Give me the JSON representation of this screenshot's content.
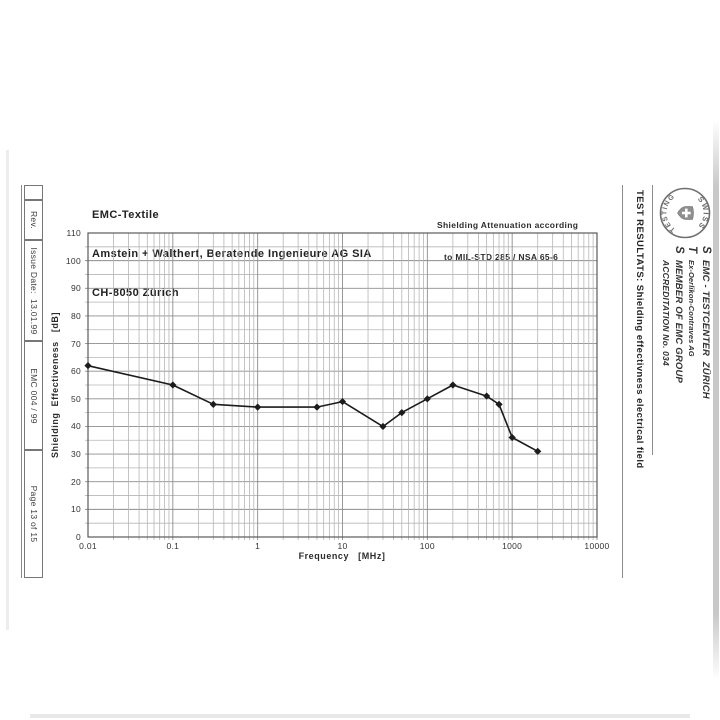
{
  "document": {
    "header": {
      "lines": [
        "EMC-Textile",
        "Amstein + Walthert, Beratende Ingenieure AG SIA",
        "CH-8050 Zürich"
      ]
    },
    "standard_note": {
      "lines": [
        "Shielding Attenuation according",
        "to MIL-STD 285 / NSA 65-6"
      ]
    },
    "left_strip": {
      "cells": [
        "",
        "Rev.",
        "Issue Date:  13.01.99",
        "EMC 004 / 99",
        "Page 13 of 15"
      ]
    },
    "right_sidebar": {
      "title": "TEST RESULTATS: Shielding effectivness electrical field",
      "logo": {
        "arc_top": "SWISS",
        "arc_bottom": "TESTING",
        "icon": "swiss-cross-shield"
      },
      "org_lines": [
        {
          "initial": "S",
          "text": "EMC - TESTCENTER  ZÜRICH"
        },
        {
          "initial": "T",
          "text": "Ex-Oerlikon-Contraves AG"
        },
        {
          "initial": "S",
          "text": "MEMBER OF EMC GROUP"
        },
        {
          "initial": "",
          "text": "ACCREDITATION No. 034"
        }
      ]
    }
  },
  "chart_data": {
    "type": "line",
    "title": "",
    "xlabel": "Frequency   [MHz]",
    "ylabel": "Shielding  Effectiveness   [dB]",
    "x_scale": "log",
    "xlim": [
      0.01,
      10000
    ],
    "ylim": [
      0,
      110
    ],
    "x_ticks": [
      0.01,
      0.1,
      1,
      10,
      100,
      1000,
      10000
    ],
    "x_tick_labels": [
      "0.01",
      "0.1",
      "1",
      "10",
      "100",
      "1000",
      "10000"
    ],
    "y_tick_step": 10,
    "y_minor_grid_step": 5,
    "grid": true,
    "legend": false,
    "series": [
      {
        "name": "Shielding Effectiveness",
        "marker": "diamond",
        "color": "#1c1c1c",
        "points": [
          [
            0.01,
            62
          ],
          [
            0.1,
            55
          ],
          [
            0.3,
            48
          ],
          [
            1,
            47
          ],
          [
            5,
            47
          ],
          [
            10,
            49
          ],
          [
            30,
            40
          ],
          [
            50,
            45
          ],
          [
            100,
            50
          ],
          [
            200,
            55
          ],
          [
            500,
            51
          ],
          [
            700,
            48
          ],
          [
            1000,
            36
          ],
          [
            2000,
            31
          ]
        ]
      }
    ]
  },
  "colors": {
    "ink": "#1c1c1c",
    "grid_major": "#8d8d8d",
    "grid_minor": "#b6b6b6",
    "frame": "#5a5a5a"
  }
}
